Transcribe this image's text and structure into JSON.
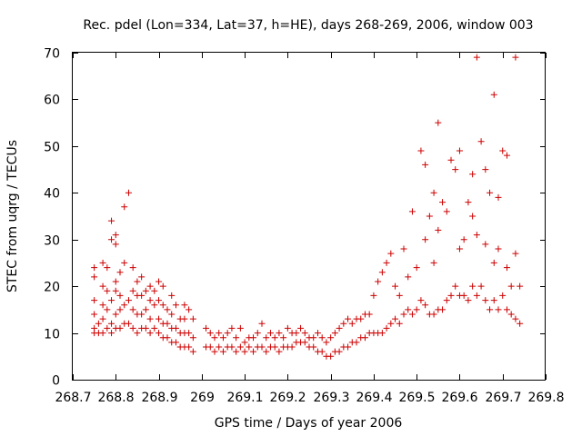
{
  "chart_data": {
    "type": "scatter",
    "title": "Rec. pdel (Lon=334, Lat=37, h=HE), days 268-269, 2006, window 003",
    "xlabel": "GPS time / Days of year 2006",
    "ylabel": "STEC from uqrg / TECUs",
    "xlim": [
      268.7,
      269.8
    ],
    "ylim": [
      0,
      70
    ],
    "x_ticks": [
      "268.7",
      "268.8",
      "268.9",
      "269",
      "269.1",
      "269.2",
      "269.3",
      "269.4",
      "269.5",
      "269.6",
      "269.7",
      "269.8"
    ],
    "y_ticks": [
      "0",
      "10",
      "20",
      "30",
      "40",
      "50",
      "60",
      "70"
    ],
    "grid": false,
    "legend": "none",
    "marker": "plus",
    "marker_color": "#cc0000",
    "series": [
      {
        "x": [
          268.75,
          268.75,
          268.75,
          268.75,
          268.75,
          268.75,
          268.76,
          268.76,
          268.77,
          268.77,
          268.77,
          268.77,
          268.77,
          268.78,
          268.78,
          268.78,
          268.78,
          268.79,
          268.79,
          268.79,
          268.79,
          268.79,
          268.8,
          268.8,
          268.8,
          268.8,
          268.8,
          268.8,
          268.81,
          268.81,
          268.81,
          268.81,
          268.82,
          268.82,
          268.82,
          268.82,
          268.83,
          268.83,
          268.83,
          268.84,
          268.84,
          268.84,
          268.84,
          268.85,
          268.85,
          268.85,
          268.85,
          268.86,
          268.86,
          268.86,
          268.86,
          268.87,
          268.87,
          268.87,
          268.88,
          268.88,
          268.88,
          268.88,
          268.89,
          268.89,
          268.89,
          268.9,
          268.9,
          268.9,
          268.9,
          268.91,
          268.91,
          268.91,
          268.91,
          268.92,
          268.92,
          268.92,
          268.93,
          268.93,
          268.93,
          268.93,
          268.94,
          268.94,
          268.94,
          268.95,
          268.95,
          268.95,
          268.96,
          268.96,
          268.96,
          268.96,
          268.97,
          268.97,
          268.97,
          268.98,
          268.98,
          268.98
        ],
        "y": [
          10,
          11,
          14,
          17,
          22,
          24,
          10,
          12,
          10,
          13,
          16,
          20,
          25,
          11,
          15,
          19,
          24,
          10,
          12,
          17,
          30,
          34,
          11,
          14,
          19,
          21,
          29,
          31,
          11,
          15,
          18,
          23,
          12,
          16,
          25,
          37,
          12,
          17,
          40,
          11,
          15,
          19,
          24,
          10,
          14,
          18,
          21,
          11,
          14,
          18,
          22,
          11,
          15,
          19,
          10,
          13,
          17,
          20,
          11,
          16,
          19,
          10,
          13,
          17,
          21,
          9,
          12,
          16,
          20,
          9,
          12,
          15,
          8,
          11,
          14,
          18,
          8,
          11,
          16,
          7,
          10,
          13,
          7,
          10,
          13,
          16,
          7,
          10,
          15,
          6,
          9,
          13
        ]
      },
      {
        "x": [
          269.01,
          269.01,
          269.02,
          269.02,
          269.03,
          269.03,
          269.04,
          269.04,
          269.05,
          269.05,
          269.06,
          269.06,
          269.07,
          269.07,
          269.08,
          269.08,
          269.09,
          269.09,
          269.1,
          269.1,
          269.11,
          269.11,
          269.12,
          269.12,
          269.13,
          269.13,
          269.14,
          269.14,
          269.15,
          269.15,
          269.16,
          269.16,
          269.17,
          269.17,
          269.18,
          269.18,
          269.19,
          269.19,
          269.2,
          269.2,
          269.21,
          269.21,
          269.22,
          269.22,
          269.23,
          269.23,
          269.24,
          269.24,
          269.25,
          269.25,
          269.26,
          269.26,
          269.27,
          269.27,
          269.28,
          269.28,
          269.29,
          269.29,
          269.3,
          269.3,
          269.31,
          269.31,
          269.32,
          269.32,
          269.33,
          269.33,
          269.34,
          269.34,
          269.35,
          269.35,
          269.36,
          269.36,
          269.37,
          269.37,
          269.38,
          269.38,
          269.39,
          269.39,
          269.4
        ],
        "y": [
          7,
          11,
          7,
          10,
          6,
          9,
          7,
          10,
          6,
          9,
          7,
          10,
          7,
          11,
          6,
          9,
          7,
          11,
          6,
          8,
          7,
          9,
          6,
          9,
          7,
          10,
          7,
          12,
          6,
          9,
          7,
          10,
          7,
          9,
          6,
          10,
          7,
          9,
          7,
          11,
          7,
          10,
          8,
          10,
          8,
          11,
          8,
          10,
          7,
          9,
          7,
          9,
          6,
          10,
          6,
          9,
          5,
          8,
          5,
          9,
          6,
          10,
          6,
          11,
          7,
          12,
          7,
          13,
          8,
          12,
          8,
          13,
          9,
          13,
          9,
          14,
          10,
          14,
          10
        ]
      },
      {
        "x": [
          269.4,
          269.41,
          269.41,
          269.42,
          269.42,
          269.43,
          269.43,
          269.44,
          269.44,
          269.45,
          269.45,
          269.46,
          269.46,
          269.47,
          269.47,
          269.48,
          269.48,
          269.49,
          269.49,
          269.5,
          269.5,
          269.51,
          269.51,
          269.52,
          269.52,
          269.52,
          269.53,
          269.53,
          269.54,
          269.54,
          269.54,
          269.55,
          269.55,
          269.55,
          269.56,
          269.56,
          269.57,
          269.57,
          269.58,
          269.58,
          269.59,
          269.59,
          269.6,
          269.6,
          269.6,
          269.61,
          269.61,
          269.62,
          269.62,
          269.63,
          269.63,
          269.63,
          269.64,
          269.64,
          269.64,
          269.65,
          269.65,
          269.66,
          269.66,
          269.66,
          269.67,
          269.67,
          269.68,
          269.68,
          269.68,
          269.69,
          269.69,
          269.69,
          269.7,
          269.7,
          269.71,
          269.71,
          269.71,
          269.72,
          269.72,
          269.73,
          269.73,
          269.73,
          269.74,
          269.74
        ],
        "y": [
          18,
          10,
          21,
          10,
          23,
          11,
          25,
          12,
          27,
          13,
          20,
          12,
          18,
          14,
          28,
          15,
          22,
          14,
          36,
          15,
          24,
          17,
          49,
          16,
          30,
          46,
          14,
          35,
          14,
          40,
          25,
          15,
          32,
          55,
          15,
          38,
          17,
          36,
          18,
          47,
          20,
          45,
          18,
          28,
          49,
          18,
          30,
          17,
          38,
          20,
          35,
          44,
          18,
          31,
          69,
          20,
          51,
          17,
          29,
          45,
          15,
          40,
          17,
          25,
          61,
          15,
          28,
          39,
          18,
          49,
          15,
          24,
          48,
          14,
          20,
          13,
          27,
          69,
          12,
          20
        ]
      }
    ]
  }
}
